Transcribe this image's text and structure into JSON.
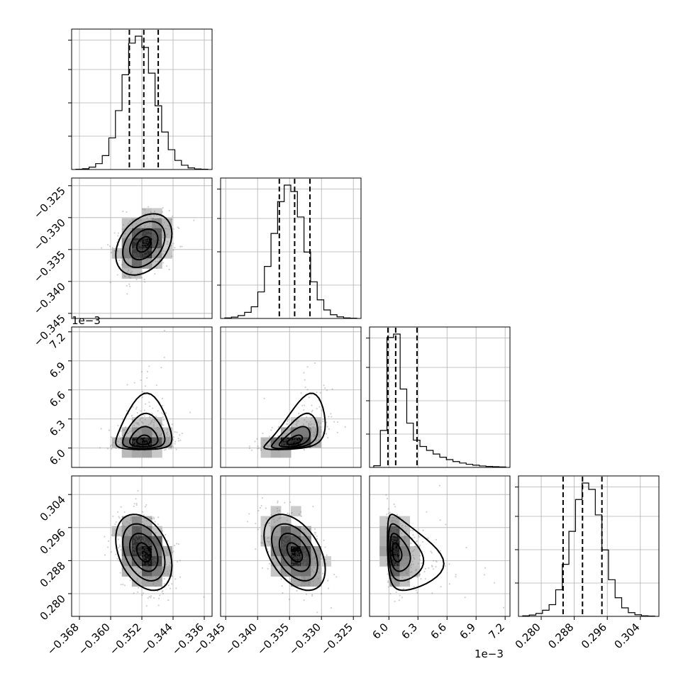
{
  "chart_data": {
    "type": "scatter",
    "title": "",
    "variables": [
      {
        "index": 0,
        "range": [
          -0.37,
          -0.334
        ],
        "mean": -0.3515,
        "sd": 0.0036,
        "quantiles": [
          -0.3552,
          -0.3515,
          -0.3478
        ],
        "ticks": [
          -0.368,
          -0.36,
          -0.352,
          -0.344,
          -0.336
        ],
        "tick_labels": [
          "−0.368",
          "−0.360",
          "−0.352",
          "−0.344",
          "−0.336"
        ],
        "exponent_label": ""
      },
      {
        "index": 1,
        "range": [
          -0.3458,
          -0.3238
        ],
        "mean": -0.3342,
        "sd": 0.0024,
        "quantiles": [
          -0.3366,
          -0.3342,
          -0.3318
        ],
        "ticks": [
          -0.345,
          -0.34,
          -0.335,
          -0.33,
          -0.325
        ],
        "tick_labels": [
          "−0.345",
          "−0.340",
          "−0.335",
          "−0.330",
          "−0.325"
        ],
        "exponent_label": ""
      },
      {
        "index": 2,
        "range": [
          5.8,
          7.25
        ],
        "mode": 6.05,
        "skewed": true,
        "quantiles": [
          5.99,
          6.07,
          6.29
        ],
        "ticks": [
          6.0,
          6.3,
          6.6,
          6.9,
          7.2
        ],
        "tick_labels": [
          "6.0",
          "6.3",
          "6.6",
          "6.9",
          "7.2"
        ],
        "exponent_label": "1e−3"
      },
      {
        "index": 3,
        "range": [
          0.2745,
          0.3085
        ],
        "mean": 0.29,
        "sd": 0.0046,
        "quantiles": [
          0.2853,
          0.29,
          0.2947
        ],
        "ticks": [
          0.28,
          0.288,
          0.296,
          0.304
        ],
        "tick_labels": [
          "0.280",
          "0.288",
          "0.296",
          "0.304"
        ],
        "exponent_label": ""
      }
    ],
    "histograms": [
      {
        "variable": 0,
        "bins": 20,
        "counts": [
          1,
          3,
          9,
          22,
          52,
          118,
          220,
          354,
          472,
          498,
          456,
          360,
          238,
          140,
          74,
          34,
          16,
          6,
          2,
          1
        ]
      },
      {
        "variable": 1,
        "bins": 20,
        "counts": [
          2,
          5,
          11,
          23,
          44,
          100,
          196,
          320,
          440,
          502,
          478,
          382,
          250,
          138,
          70,
          32,
          14,
          6,
          2,
          1
        ]
      },
      {
        "variable": 2,
        "bins": 20,
        "counts": [
          7,
          152,
          534,
          548,
          322,
          182,
          112,
          86,
          70,
          55,
          42,
          32,
          24,
          18,
          13,
          9,
          6,
          4,
          3,
          2
        ]
      },
      {
        "variable": 3,
        "bins": 20,
        "counts": [
          2,
          5,
          11,
          23,
          44,
          100,
          196,
          320,
          440,
          502,
          478,
          382,
          250,
          138,
          70,
          32,
          14,
          6,
          2,
          1
        ]
      }
    ],
    "pairs": [
      {
        "x": 0,
        "y": 1,
        "correlation": 0.35
      },
      {
        "x": 0,
        "y": 2,
        "correlation": 0.1
      },
      {
        "x": 1,
        "y": 2,
        "correlation": 0.55
      },
      {
        "x": 0,
        "y": 3,
        "correlation": -0.35
      },
      {
        "x": 1,
        "y": 3,
        "correlation": -0.45
      },
      {
        "x": 2,
        "y": 3,
        "correlation": -0.3
      }
    ],
    "contour_levels": [
      0.5,
      1.0,
      1.5,
      2.0
    ],
    "grid": true,
    "legend": "none"
  }
}
